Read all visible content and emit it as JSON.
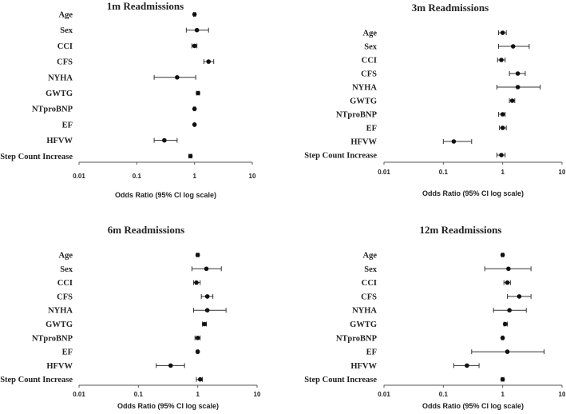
{
  "chart_data": [
    {
      "type": "forest",
      "title": "1m Readmissions",
      "xlabel": "Odds Ratio (95% CI log scale)",
      "xscale": "log",
      "xlim": [
        0.01,
        10
      ],
      "xticks": [
        "0.01",
        "0.1",
        "1",
        "10"
      ],
      "variables": [
        {
          "name": "Age",
          "or": 1.0,
          "lo": 0.96,
          "hi": 1.04
        },
        {
          "name": "Sex",
          "or": 1.1,
          "lo": 0.72,
          "hi": 1.75
        },
        {
          "name": "CCI",
          "or": 1.0,
          "lo": 0.9,
          "hi": 1.1
        },
        {
          "name": "CFS",
          "or": 1.75,
          "lo": 1.45,
          "hi": 2.15
        },
        {
          "name": "NYHA",
          "or": 0.5,
          "lo": 0.2,
          "hi": 1.05
        },
        {
          "name": "GWTG",
          "or": 1.15,
          "lo": 1.08,
          "hi": 1.22
        },
        {
          "name": "NTproBNP",
          "or": 1.0,
          "lo": 0.97,
          "hi": 1.03
        },
        {
          "name": "EF",
          "or": 1.0,
          "lo": 0.98,
          "hi": 1.02
        },
        {
          "name": "HFVW",
          "or": 0.3,
          "lo": 0.2,
          "hi": 0.5
        },
        {
          "name": "Step Count Increase",
          "or": 0.85,
          "lo": 0.8,
          "hi": 0.9
        }
      ]
    },
    {
      "type": "forest",
      "title": "3m Readmissions",
      "xlabel": "Odds Ratio (95% CI log scale)",
      "xscale": "log",
      "xlim": [
        0.01,
        10
      ],
      "xticks": [
        "0.01",
        "0.1",
        "1",
        "10"
      ],
      "variables": [
        {
          "name": "Age",
          "or": 1.0,
          "lo": 0.85,
          "hi": 1.15
        },
        {
          "name": "Sex",
          "or": 1.5,
          "lo": 0.85,
          "hi": 2.8
        },
        {
          "name": "CCI",
          "or": 0.95,
          "lo": 0.82,
          "hi": 1.1
        },
        {
          "name": "CFS",
          "or": 1.8,
          "lo": 1.3,
          "hi": 2.4
        },
        {
          "name": "NYHA",
          "or": 1.8,
          "lo": 0.8,
          "hi": 4.3
        },
        {
          "name": "GWTG",
          "or": 1.45,
          "lo": 1.3,
          "hi": 1.6
        },
        {
          "name": "NTproBNP",
          "or": 1.0,
          "lo": 0.85,
          "hi": 1.1
        },
        {
          "name": "EF",
          "or": 1.0,
          "lo": 0.88,
          "hi": 1.15
        },
        {
          "name": "HFVW",
          "or": 0.15,
          "lo": 0.1,
          "hi": 0.3
        },
        {
          "name": "Step Count Increase",
          "or": 0.95,
          "lo": 0.8,
          "hi": 1.1
        }
      ]
    },
    {
      "type": "forest",
      "title": "6m Readmissions",
      "xlabel": "Odds Ratio (95% CI log scale)",
      "xscale": "log",
      "xlim": [
        0.01,
        10
      ],
      "xticks": [
        "0.01",
        "0.1",
        "1",
        "10"
      ],
      "variables": [
        {
          "name": "Age",
          "or": 1.0,
          "lo": 0.95,
          "hi": 1.05
        },
        {
          "name": "Sex",
          "or": 1.4,
          "lo": 0.8,
          "hi": 2.5
        },
        {
          "name": "CCI",
          "or": 0.95,
          "lo": 0.85,
          "hi": 1.1
        },
        {
          "name": "CFS",
          "or": 1.45,
          "lo": 1.15,
          "hi": 1.8
        },
        {
          "name": "NYHA",
          "or": 1.45,
          "lo": 0.85,
          "hi": 3.0
        },
        {
          "name": "GWTG",
          "or": 1.3,
          "lo": 1.2,
          "hi": 1.4
        },
        {
          "name": "NTproBNP",
          "or": 1.0,
          "lo": 0.9,
          "hi": 1.1
        },
        {
          "name": "EF",
          "or": 1.0,
          "lo": 0.97,
          "hi": 1.03
        },
        {
          "name": "HFVW",
          "or": 0.35,
          "lo": 0.2,
          "hi": 0.6
        },
        {
          "name": "Step Count Increase",
          "or": 1.1,
          "lo": 0.95,
          "hi": 1.2
        }
      ]
    },
    {
      "type": "forest",
      "title": "12m Readmissions",
      "xlabel": "Odds Ratio (95% CI log scale)",
      "xscale": "log",
      "xlim": [
        0.01,
        10
      ],
      "xticks": [
        "0.01",
        "0.1",
        "1",
        "10"
      ],
      "variables": [
        {
          "name": "Age",
          "or": 1.0,
          "lo": 0.96,
          "hi": 1.04
        },
        {
          "name": "Sex",
          "or": 1.25,
          "lo": 0.5,
          "hi": 3.0
        },
        {
          "name": "CCI",
          "or": 1.2,
          "lo": 1.05,
          "hi": 1.35
        },
        {
          "name": "CFS",
          "or": 1.9,
          "lo": 1.2,
          "hi": 3.0
        },
        {
          "name": "NYHA",
          "or": 1.3,
          "lo": 0.7,
          "hi": 2.5
        },
        {
          "name": "GWTG",
          "or": 1.1,
          "lo": 1.05,
          "hi": 1.2
        },
        {
          "name": "NTproBNP",
          "or": 1.0,
          "lo": 0.97,
          "hi": 1.03
        },
        {
          "name": "EF",
          "or": 1.2,
          "lo": 0.3,
          "hi": 5.0
        },
        {
          "name": "HFVW",
          "or": 0.25,
          "lo": 0.15,
          "hi": 0.4
        },
        {
          "name": "Step Count Increase",
          "or": 1.0,
          "lo": 0.95,
          "hi": 1.05
        }
      ]
    }
  ]
}
